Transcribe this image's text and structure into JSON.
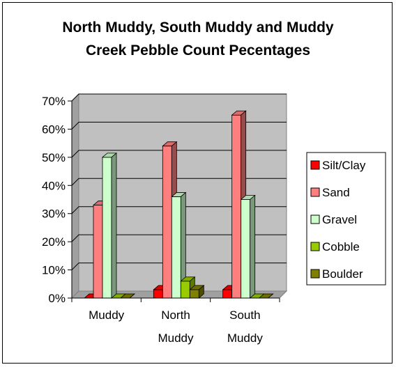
{
  "chart_data": {
    "type": "bar",
    "title_lines": [
      "North Muddy, South Muddy and Muddy",
      "Creek Pebble Count Pecentages"
    ],
    "categories": [
      [
        "Muddy"
      ],
      [
        "North",
        "Muddy"
      ],
      [
        "South",
        "Muddy"
      ]
    ],
    "y_ticks": [
      "0%",
      "10%",
      "20%",
      "30%",
      "40%",
      "50%",
      "60%",
      "70%"
    ],
    "ylim": [
      0,
      70
    ],
    "grid": true,
    "legend_position": "right",
    "three_d": true,
    "series": [
      {
        "name": "Silt/Clay",
        "color": "#ff0000",
        "values": [
          0,
          3,
          3
        ]
      },
      {
        "name": "Sand",
        "color": "#ff7f7f",
        "values": [
          33,
          54,
          65
        ]
      },
      {
        "name": "Gravel",
        "color": "#ccffcc",
        "values": [
          50,
          36,
          35
        ]
      },
      {
        "name": "Cobble",
        "color": "#99cc00",
        "values": [
          0,
          6,
          0
        ]
      },
      {
        "name": "Boulder",
        "color": "#808000",
        "values": [
          0,
          3,
          0
        ]
      }
    ]
  }
}
